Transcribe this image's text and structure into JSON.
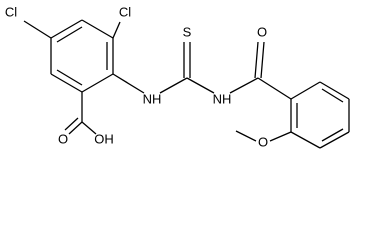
{
  "atoms": [
    {
      "label": "Cl"
    },
    {
      "label": "Cl"
    },
    {
      "label": "NH"
    },
    {
      "label": "S"
    },
    {
      "label": "NH"
    },
    {
      "label": "O"
    },
    {
      "label": "O"
    },
    {
      "label": "OH"
    },
    {
      "label": "O"
    }
  ]
}
